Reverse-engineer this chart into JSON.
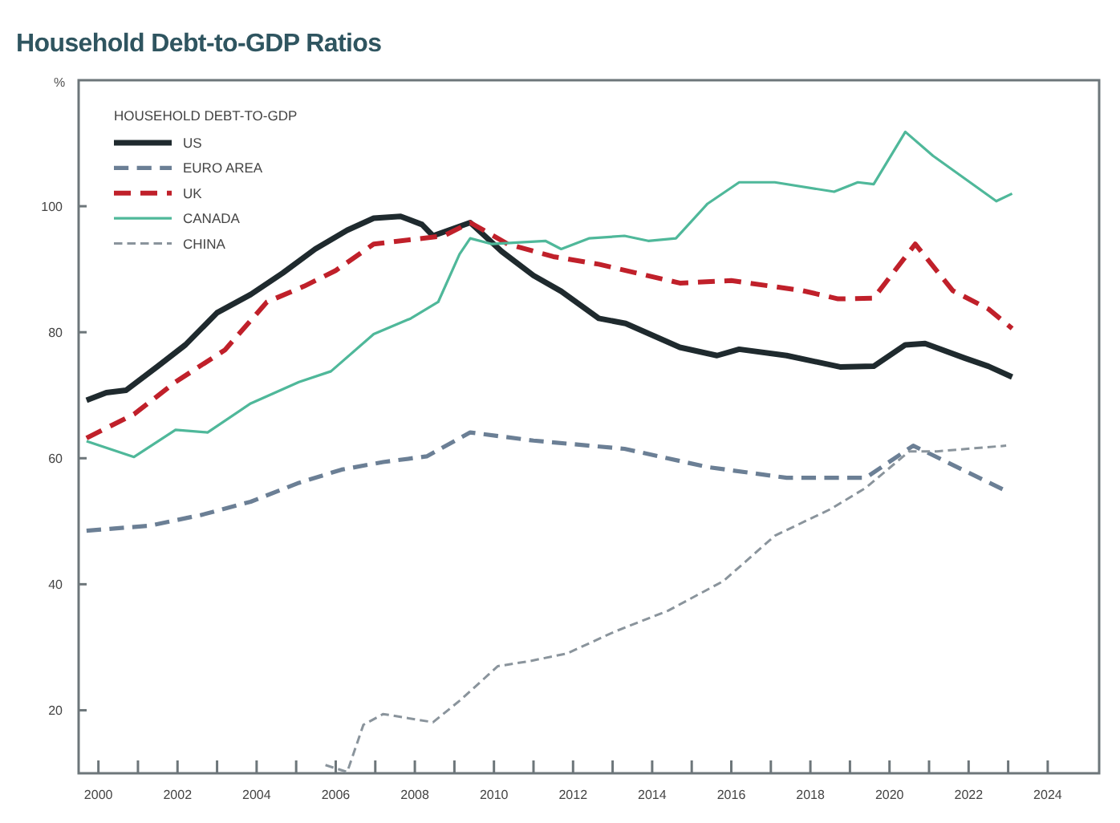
{
  "chart_data": {
    "type": "line",
    "title": "Household Debt-to-GDP Ratios",
    "ylabel": "%",
    "legend_title": "HOUSEHOLD DEBT-TO-GDP",
    "legend": "top left",
    "grid": false,
    "xlim": [
      1999.5,
      2025.3
    ],
    "ylim": [
      10,
      120
    ],
    "xticks": [
      2000,
      {
        "value": 2001,
        "label": null
      },
      2002,
      {
        "value": 2003,
        "label": null
      },
      2004,
      {
        "value": 2005,
        "label": null
      },
      2006,
      {
        "value": 2007,
        "label": null
      },
      2008,
      {
        "value": 2009,
        "label": null
      },
      2010,
      {
        "value": 2011,
        "label": null
      },
      2012,
      {
        "value": 2013,
        "label": null
      },
      2014,
      {
        "value": 2015,
        "label": null
      },
      2016,
      {
        "value": 2017,
        "label": null
      },
      2018,
      {
        "value": 2019,
        "label": null
      },
      2020,
      {
        "value": 2021,
        "label": null
      },
      2022,
      {
        "value": 2023,
        "label": null
      },
      2024
    ],
    "yticks": [
      20,
      40,
      60,
      80,
      100
    ],
    "series": [
      {
        "name": "US",
        "color": "#1f2a2e",
        "line_style": "solid",
        "x": [
          1999.7,
          2000.2,
          2000.7,
          2001.5,
          2002.2,
          2003.0,
          2003.85,
          2004.66,
          2005.48,
          2006.29,
          2006.96,
          2007.64,
          2008.18,
          2008.46,
          2009.4,
          2010.2,
          2011.0,
          2011.7,
          2012.65,
          2013.33,
          2014.7,
          2015.64,
          2016.2,
          2017.4,
          2018.75,
          2019.6,
          2020.4,
          2020.9,
          2021.9,
          2022.5,
          2023.1
        ],
        "values": [
          69.2,
          70.4,
          70.8,
          74.6,
          78,
          83.1,
          86,
          89.4,
          93.2,
          96.2,
          98.1,
          98.4,
          97.1,
          95.3,
          97.4,
          92.8,
          89,
          86.5,
          82.2,
          81.4,
          77.6,
          76.3,
          77.3,
          76.3,
          74.5,
          74.6,
          78,
          78.2,
          75.9,
          74.6,
          72.9
        ]
      },
      {
        "name": "EURO AREA",
        "color": "#6b7f95",
        "line_style": "dashed",
        "x": [
          1999.7,
          2001.3,
          2002.6,
          2003.85,
          2005.07,
          2006.15,
          2007.2,
          2008.3,
          2009.4,
          2011.0,
          2013.3,
          2015.4,
          2017.4,
          2019.4,
          2020.6,
          2022.95
        ],
        "values": [
          48.5,
          49.3,
          51,
          53.1,
          56.1,
          58.2,
          59.4,
          60.3,
          64.1,
          62.8,
          61.5,
          58.6,
          56.9,
          56.9,
          62,
          54.8
        ]
      },
      {
        "name": "UK",
        "color": "#c0202a",
        "line_style": "dashed",
        "x": [
          1999.7,
          2000.9,
          2001.95,
          2003.2,
          2004.26,
          2005.2,
          2006.0,
          2006.96,
          2008.05,
          2008.73,
          2009.4,
          2010.35,
          2011.5,
          2012.65,
          2014.7,
          2016.0,
          2017.8,
          2018.7,
          2019.6,
          2020.65,
          2021.6,
          2022.5,
          2023.1
        ],
        "values": [
          63.2,
          67,
          72.1,
          77.2,
          84.8,
          87.3,
          89.8,
          94,
          94.8,
          95.3,
          97.4,
          94,
          92,
          90.8,
          87.8,
          88.2,
          86.6,
          85.3,
          85.4,
          94,
          86.6,
          83.7,
          80.6
        ]
      },
      {
        "name": "CANADA",
        "color": "#4fb89a",
        "line_style": "solid",
        "x": [
          1999.7,
          2000.9,
          2001.95,
          2002.76,
          2003.85,
          2005.07,
          2005.88,
          2006.96,
          2007.9,
          2008.59,
          2009.13,
          2009.4,
          2009.95,
          2011.3,
          2011.7,
          2012.4,
          2013.3,
          2013.9,
          2014.6,
          2015.4,
          2016.2,
          2017.1,
          2018.6,
          2019.2,
          2019.6,
          2020.4,
          2021.1,
          2022.7,
          2023.1
        ],
        "values": [
          62.7,
          60.2,
          64.5,
          64.1,
          68.7,
          72.1,
          73.8,
          79.7,
          82.2,
          84.8,
          92.4,
          94.9,
          94,
          94.5,
          93.2,
          94.9,
          95.3,
          94.5,
          94.9,
          100.4,
          103.8,
          103.8,
          102.3,
          103.8,
          103.5,
          111.8,
          108,
          100.8,
          102
        ]
      },
      {
        "name": "CHINA",
        "color": "#8a949c",
        "line_style": "dashed",
        "x": [
          2005.74,
          2006.29,
          2006.7,
          2007.2,
          2008.46,
          2009.13,
          2010.1,
          2010.9,
          2011.84,
          2013.06,
          2014.4,
          2015.8,
          2017.1,
          2018.5,
          2019.4,
          2020.5,
          2021.2,
          2022.95
        ],
        "values": [
          11.3,
          10.2,
          17.7,
          19.4,
          18.1,
          21.5,
          27,
          27.8,
          29,
          32.5,
          35.8,
          40.5,
          47.7,
          51.9,
          55.3,
          61.1,
          61.1,
          62
        ]
      }
    ]
  }
}
